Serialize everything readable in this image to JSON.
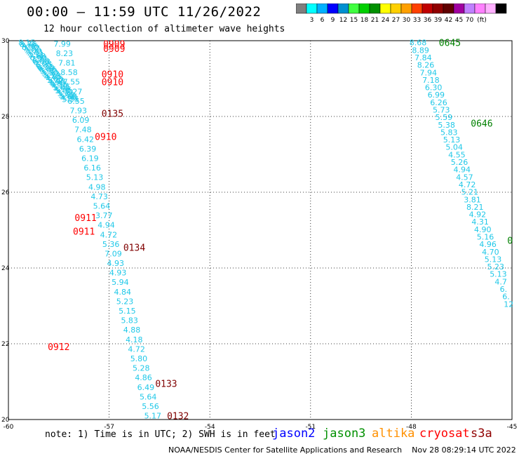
{
  "header": {
    "title": "00:00 – 11:59 UTC 11/26/2022",
    "subtitle": "12 hour collection of altimeter wave heights"
  },
  "colorbar": {
    "colors": [
      "#7f7f7f",
      "#00ffff",
      "#00b0ff",
      "#0000ff",
      "#0090d0",
      "#40ff40",
      "#00d000",
      "#009000",
      "#ffff00",
      "#ffd000",
      "#ffa000",
      "#ff4000",
      "#c00000",
      "#900000",
      "#600000",
      "#a000a0",
      "#c080ff",
      "#ff80ff",
      "#ffb0ff",
      "#000000"
    ],
    "labels": [
      "3",
      "6",
      "9",
      "12",
      "15",
      "18",
      "21",
      "24",
      "27",
      "30",
      "33",
      "36",
      "39",
      "42",
      "45",
      "70"
    ],
    "unit": "(ft)"
  },
  "map": {
    "lon_range": [
      -60,
      -45
    ],
    "lat_range": [
      20,
      30
    ],
    "x_ticks": [
      "-60",
      "-57",
      "-54",
      "-51",
      "-48",
      "-45"
    ],
    "y_ticks": [
      "30",
      "28",
      "26",
      "24",
      "22",
      "20"
    ],
    "track_color": "#20c8e8",
    "tracks": [
      {
        "name": "track-a",
        "lon": [
          -59.45,
          -58.15
        ],
        "lat": [
          29.95,
          28.45
        ],
        "values": [
          "8.15",
          "8.76",
          "7.66",
          "8.50",
          "7.37",
          "7.00",
          "7.70",
          "7.41",
          "7.31",
          "7.68",
          "6.90",
          "7.21",
          "6.88",
          "6.77",
          "7.08",
          "6.85",
          "6.35",
          "6.09",
          "6.06",
          "5.50",
          "5.50",
          "5.43",
          "5.29",
          "4.85",
          "4.66",
          "5.22",
          "4.98",
          "4.81",
          "4.55",
          "4.17",
          "5.04",
          "4.58",
          "5.01",
          "4.72",
          "5.21",
          "5.52",
          "5.68",
          "4.90",
          "5.55"
        ]
      },
      {
        "name": "track-b",
        "lon": [
          -58.4,
          -55.7
        ],
        "lat": [
          29.92,
          20.1
        ],
        "values": [
          "7.99",
          "8.23",
          "7.81",
          "8.58",
          "7.55",
          "7.27",
          "6.55",
          "7.93",
          "6.09",
          "7.48",
          "6.42",
          "6.39",
          "6.19",
          "6.16",
          "5.13",
          "4.98",
          "4.73",
          "5.64",
          "3.77",
          "4.94",
          "4.72",
          "5.36",
          "7.09",
          "4.93",
          "4.93",
          "5.94",
          "4.84",
          "5.23",
          "5.15",
          "5.83",
          "4.88",
          "4.18",
          "4.72",
          "5.80",
          "5.28",
          "4.86",
          "6.49",
          "5.64",
          "5.56",
          "5.17"
        ]
      },
      {
        "name": "track-c",
        "lon": [
          -47.8,
          -45.1
        ],
        "lat": [
          29.95,
          23.05
        ],
        "values": [
          "8.68",
          "8.89",
          "7.84",
          "8.26",
          "7.94",
          "7.18",
          "6.30",
          "6.99",
          "6.26",
          "5.73",
          "5.59",
          "5.38",
          "5.83",
          "5.13",
          "5.04",
          "4.55",
          "5.26",
          "4.94",
          "4.57",
          "4.72",
          "5.21",
          "3.81",
          "8.21",
          "4.92",
          "4.31",
          "4.90",
          "5.16",
          "4.96",
          "4.70",
          "5.13",
          "5.23",
          "5.13",
          "4.7",
          "6.",
          "6.",
          "12"
        ]
      }
    ],
    "time_labels": [
      {
        "text": "0909",
        "color": "#ff0000",
        "lon": -56.85,
        "lat": 29.92
      },
      {
        "text": "0909",
        "color": "#ff0000",
        "lon": -56.85,
        "lat": 29.8
      },
      {
        "text": "0910",
        "color": "#ff0000",
        "lon": -56.9,
        "lat": 29.12
      },
      {
        "text": "0910",
        "color": "#ff0000",
        "lon": -56.9,
        "lat": 28.92
      },
      {
        "text": "0135",
        "color": "#800000",
        "lon": -56.9,
        "lat": 28.08
      },
      {
        "text": "0910",
        "color": "#ff0000",
        "lon": -57.1,
        "lat": 27.47
      },
      {
        "text": "0911",
        "color": "#ff0000",
        "lon": -57.7,
        "lat": 25.33
      },
      {
        "text": "0911",
        "color": "#ff0000",
        "lon": -57.75,
        "lat": 24.97
      },
      {
        "text": "0134",
        "color": "#800000",
        "lon": -56.25,
        "lat": 24.55
      },
      {
        "text": "0912",
        "color": "#ff0000",
        "lon": -58.5,
        "lat": 21.93
      },
      {
        "text": "0133",
        "color": "#800000",
        "lon": -55.3,
        "lat": 20.95
      },
      {
        "text": "0132",
        "color": "#800000",
        "lon": -54.95,
        "lat": 20.1
      },
      {
        "text": "0645",
        "color": "#008000",
        "lon": -46.85,
        "lat": 29.95
      },
      {
        "text": "0646",
        "color": "#008000",
        "lon": -45.9,
        "lat": 27.82
      },
      {
        "text": "0",
        "color": "#008000",
        "lon": -45.06,
        "lat": 24.73
      }
    ]
  },
  "footer": {
    "note": "note: 1) Time is in UTC; 2) SWH is in feet",
    "satellites": [
      {
        "name": "jason2",
        "color": "#0000ff"
      },
      {
        "name": "jason3",
        "color": "#009000"
      },
      {
        "name": "altika",
        "color": "#ff9000"
      },
      {
        "name": "cryosat",
        "color": "#ff0000"
      },
      {
        "name": "s3a",
        "color": "#900000"
      }
    ],
    "credit": "NOAA/NESDIS Center for Satellite Applications and Research    Nov 28 08:29:14 UTC 2022"
  }
}
